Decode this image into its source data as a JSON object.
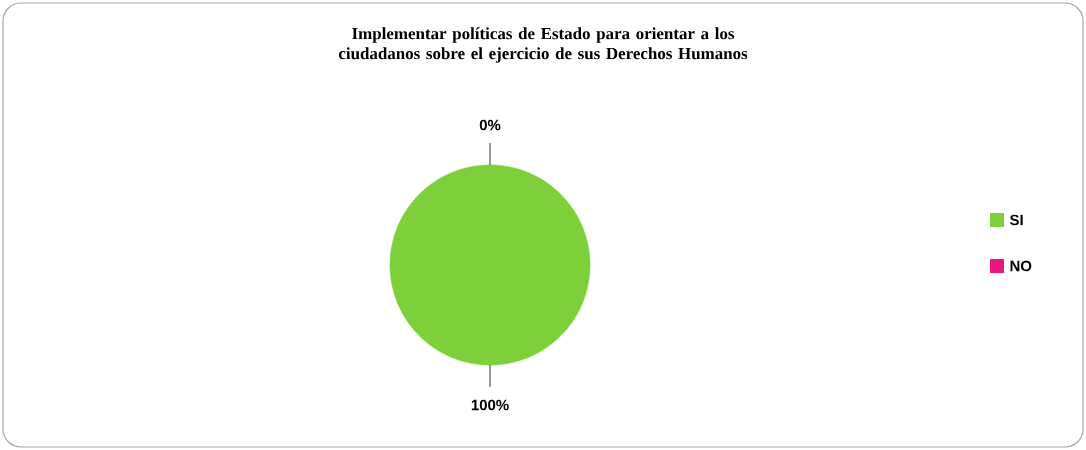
{
  "chart_data": {
    "type": "pie",
    "title": "Implementar políticas de Estado para orientar a los ciudadanos sobre el ejercicio de sus Derechos Humanos",
    "categories": [
      "SI",
      "NO"
    ],
    "values": [
      100,
      0
    ],
    "value_labels": [
      "100%",
      "0%"
    ],
    "colors": [
      "#7ed03b",
      "#e8177c"
    ],
    "legend": "right"
  }
}
